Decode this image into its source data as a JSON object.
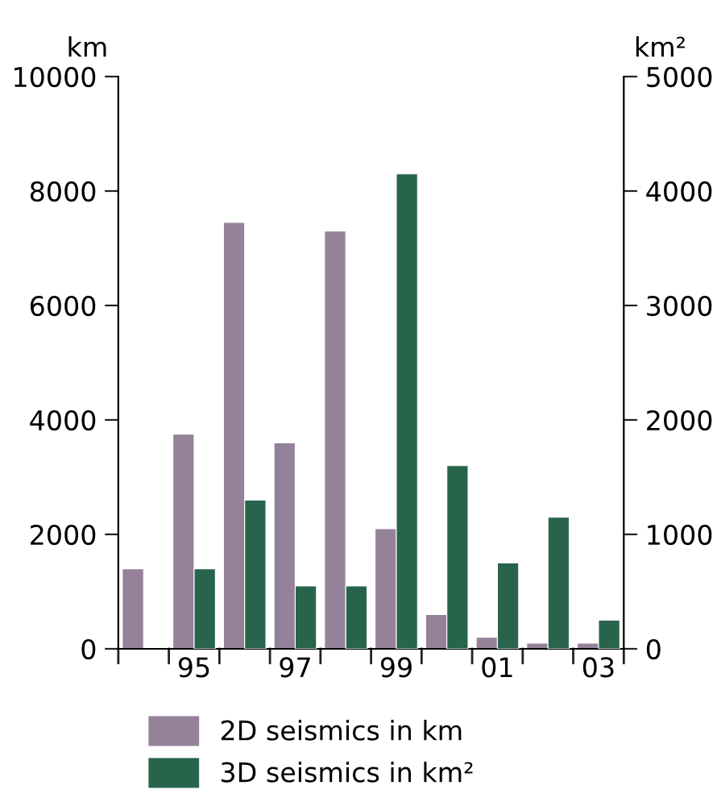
{
  "chart_data": {
    "type": "bar",
    "categories": [
      null,
      "95",
      null,
      "97",
      null,
      "99",
      null,
      "01",
      null,
      "03"
    ],
    "series": [
      {
        "name": "2D seismics in km",
        "color": "#958199",
        "values": [
          1400,
          3750,
          7450,
          3600,
          7300,
          2100,
          600,
          200,
          100,
          100
        ]
      },
      {
        "name": "3D seismics in km²",
        "color": "#28644c",
        "axis": "y2",
        "values": [
          null,
          700,
          1300,
          550,
          550,
          4150,
          1600,
          750,
          1150,
          250
        ]
      }
    ],
    "ylabel": "km",
    "y2label": "km²",
    "ylim": [
      0,
      10000
    ],
    "yticks": [
      0,
      2000,
      4000,
      6000,
      8000,
      10000
    ],
    "y2lim": [
      0,
      5000
    ],
    "y2ticks": [
      0,
      1000,
      2000,
      3000,
      4000,
      5000
    ],
    "grid": false,
    "legend": "bottom"
  }
}
